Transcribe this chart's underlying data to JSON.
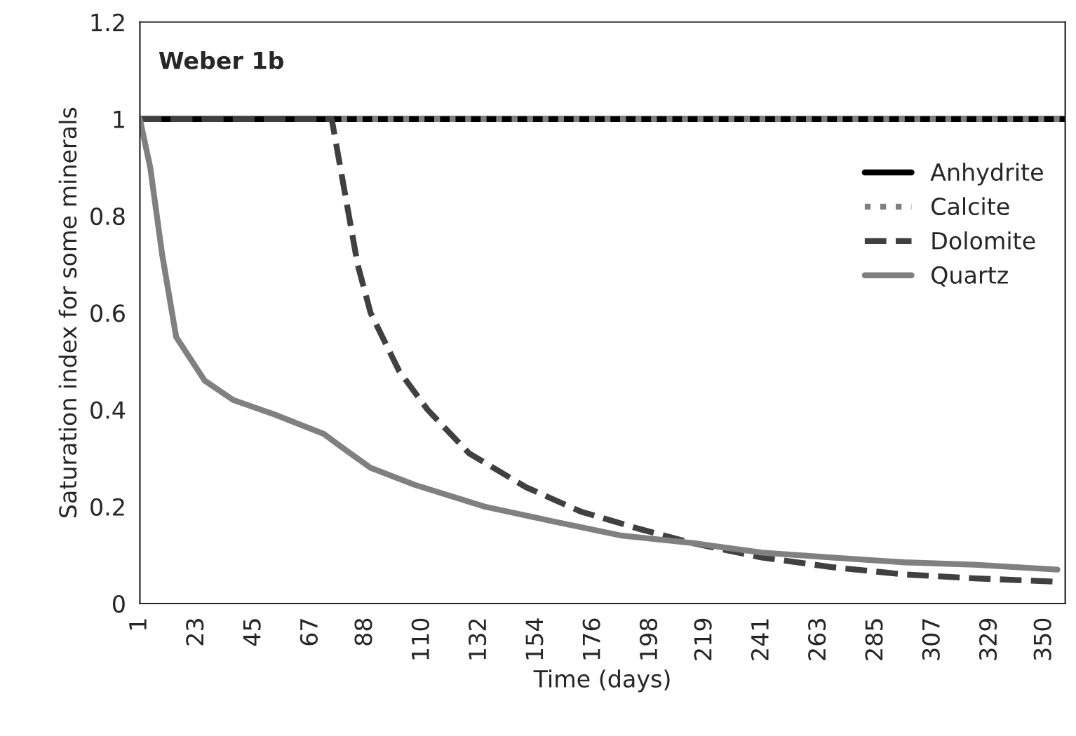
{
  "chart_data": {
    "type": "line",
    "title": "Weber 1b",
    "xlabel": "Time (days)",
    "ylabel": "Saturation index for some minerals",
    "xlim": [
      1,
      358
    ],
    "xticks": [
      1,
      23,
      45,
      67,
      88,
      110,
      132,
      154,
      176,
      198,
      219,
      241,
      263,
      285,
      307,
      329,
      350
    ],
    "ylim": [
      0,
      1.2
    ],
    "yticks": [
      0,
      0.2,
      0.4,
      0.6,
      0.8,
      1,
      1.2
    ],
    "grid": false,
    "legend": "right",
    "series": [
      {
        "name": "Anhydrite",
        "color": "#000000",
        "line_style": "solid",
        "x": [
          1,
          358
        ],
        "values": [
          1,
          1
        ]
      },
      {
        "name": "Calcite",
        "color": "#808080",
        "line_style": "dotted",
        "x": [
          1,
          358
        ],
        "values": [
          1,
          1
        ]
      },
      {
        "name": "Dolomite",
        "color": "#404040",
        "line_style": "dashed",
        "x": [
          1,
          75,
          79,
          85,
          90,
          101,
          112,
          128,
          150,
          171,
          193,
          214,
          241,
          268,
          296,
          323,
          355
        ],
        "values": [
          1,
          1,
          0.88,
          0.7,
          0.6,
          0.48,
          0.4,
          0.31,
          0.24,
          0.19,
          0.155,
          0.125,
          0.095,
          0.075,
          0.06,
          0.052,
          0.045
        ]
      },
      {
        "name": "Quartz",
        "color": "#808080",
        "line_style": "solid",
        "x": [
          1,
          5,
          9.6,
          15,
          26,
          37,
          53,
          72,
          77,
          90,
          107,
          134,
          160,
          187,
          214,
          241,
          268,
          296,
          323,
          355
        ],
        "values": [
          1,
          0.9,
          0.72,
          0.55,
          0.46,
          0.42,
          0.39,
          0.35,
          0.33,
          0.28,
          0.245,
          0.2,
          0.17,
          0.14,
          0.125,
          0.105,
          0.095,
          0.085,
          0.08,
          0.07
        ]
      }
    ]
  }
}
